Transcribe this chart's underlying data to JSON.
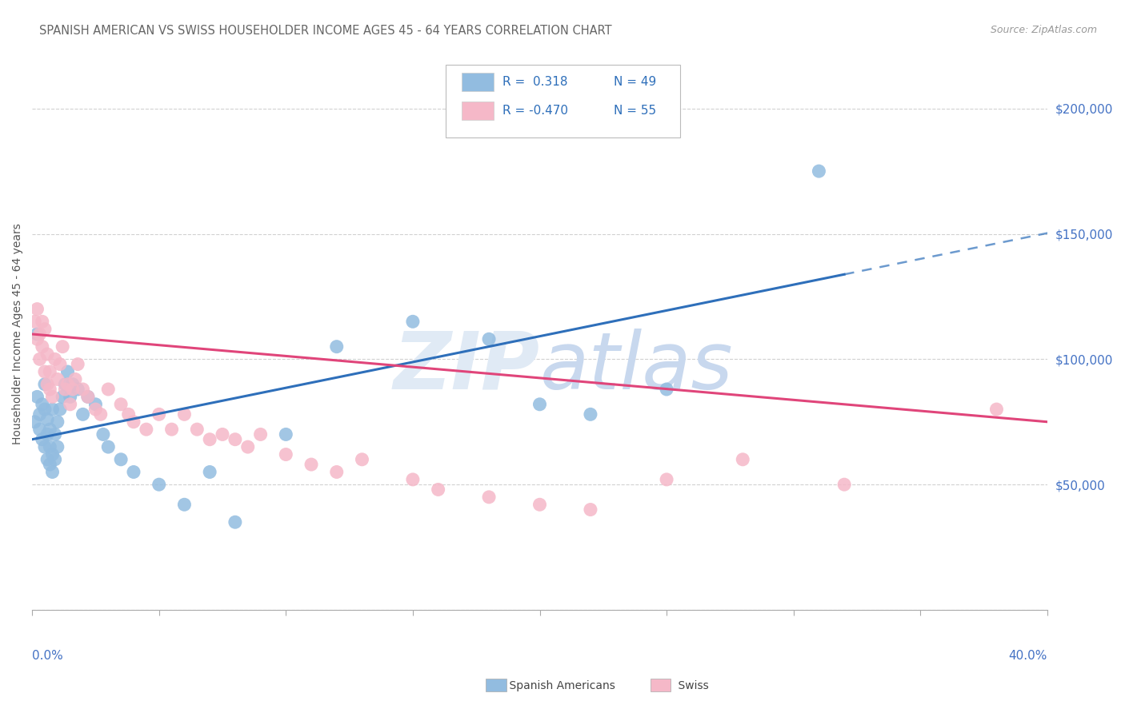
{
  "title": "SPANISH AMERICAN VS SWISS HOUSEHOLDER INCOME AGES 45 - 64 YEARS CORRELATION CHART",
  "source": "Source: ZipAtlas.com",
  "ylabel": "Householder Income Ages 45 - 64 years",
  "xlim": [
    0.0,
    0.4
  ],
  "ylim": [
    0,
    220000
  ],
  "background_color": "#ffffff",
  "blue_scatter_color": "#92bce0",
  "pink_scatter_color": "#f5b8c8",
  "blue_line_color": "#2e6fba",
  "pink_line_color": "#e0457a",
  "axis_color": "#4472c4",
  "grid_color": "#cccccc",
  "title_color": "#666666",
  "source_color": "#999999",
  "watermark_color": "#e0eaf5",
  "legend_text_color": "#2e6fba",
  "sa_x": [
    0.001,
    0.002,
    0.002,
    0.003,
    0.003,
    0.004,
    0.004,
    0.005,
    0.005,
    0.005,
    0.006,
    0.006,
    0.006,
    0.007,
    0.007,
    0.007,
    0.008,
    0.008,
    0.008,
    0.009,
    0.009,
    0.01,
    0.01,
    0.011,
    0.012,
    0.013,
    0.014,
    0.015,
    0.016,
    0.018,
    0.02,
    0.022,
    0.025,
    0.028,
    0.03,
    0.035,
    0.04,
    0.05,
    0.06,
    0.07,
    0.08,
    0.1,
    0.12,
    0.15,
    0.18,
    0.2,
    0.22,
    0.25,
    0.31
  ],
  "sa_y": [
    75000,
    110000,
    85000,
    78000,
    72000,
    82000,
    68000,
    80000,
    65000,
    90000,
    70000,
    60000,
    76000,
    65000,
    58000,
    72000,
    62000,
    55000,
    80000,
    70000,
    60000,
    75000,
    65000,
    80000,
    85000,
    90000,
    95000,
    85000,
    90000,
    88000,
    78000,
    85000,
    82000,
    70000,
    65000,
    60000,
    55000,
    50000,
    42000,
    55000,
    35000,
    70000,
    105000,
    115000,
    108000,
    82000,
    78000,
    88000,
    175000
  ],
  "sw_x": [
    0.001,
    0.002,
    0.002,
    0.003,
    0.003,
    0.004,
    0.004,
    0.005,
    0.005,
    0.006,
    0.006,
    0.007,
    0.007,
    0.008,
    0.009,
    0.01,
    0.011,
    0.012,
    0.013,
    0.014,
    0.015,
    0.016,
    0.017,
    0.018,
    0.02,
    0.022,
    0.025,
    0.027,
    0.03,
    0.035,
    0.038,
    0.04,
    0.045,
    0.05,
    0.055,
    0.06,
    0.065,
    0.07,
    0.075,
    0.08,
    0.085,
    0.09,
    0.1,
    0.11,
    0.12,
    0.13,
    0.15,
    0.16,
    0.18,
    0.2,
    0.22,
    0.25,
    0.28,
    0.32,
    0.38
  ],
  "sw_y": [
    115000,
    120000,
    108000,
    110000,
    100000,
    105000,
    115000,
    112000,
    95000,
    102000,
    90000,
    95000,
    88000,
    85000,
    100000,
    92000,
    98000,
    105000,
    88000,
    90000,
    82000,
    88000,
    92000,
    98000,
    88000,
    85000,
    80000,
    78000,
    88000,
    82000,
    78000,
    75000,
    72000,
    78000,
    72000,
    78000,
    72000,
    68000,
    70000,
    68000,
    65000,
    70000,
    62000,
    58000,
    55000,
    60000,
    52000,
    48000,
    45000,
    42000,
    40000,
    52000,
    60000,
    50000,
    80000
  ],
  "sa_line_x0": 0.0,
  "sa_line_y0": 68000,
  "sa_line_x1": 0.35,
  "sa_line_y1": 140000,
  "sw_line_x0": 0.0,
  "sw_line_y0": 110000,
  "sw_line_x1": 0.4,
  "sw_line_y1": 75000
}
